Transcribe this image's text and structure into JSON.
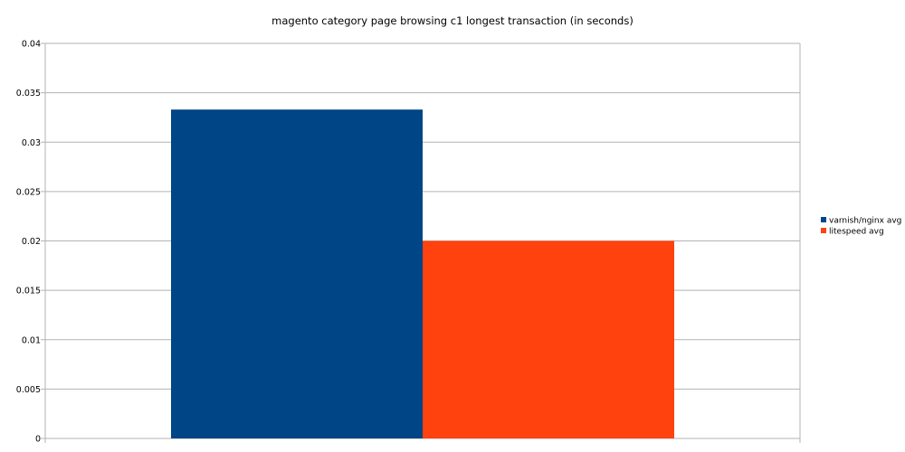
{
  "chart_data": {
    "type": "bar",
    "title": "magento category page browsing c1 longest transaction (in seconds)",
    "xlabel": "",
    "ylabel": "",
    "categories": [
      ""
    ],
    "series": [
      {
        "name": "varnish/nginx avg",
        "values": [
          0.0333
        ],
        "color": "#004586"
      },
      {
        "name": "litespeed avg",
        "values": [
          0.02
        ],
        "color": "#ff420e"
      }
    ],
    "ylim": [
      0,
      0.04
    ],
    "yticks": [
      "0",
      "0.005",
      "0.01",
      "0.015",
      "0.02",
      "0.025",
      "0.03",
      "0.035",
      "0.04"
    ],
    "grid": true,
    "legend_position": "right"
  }
}
